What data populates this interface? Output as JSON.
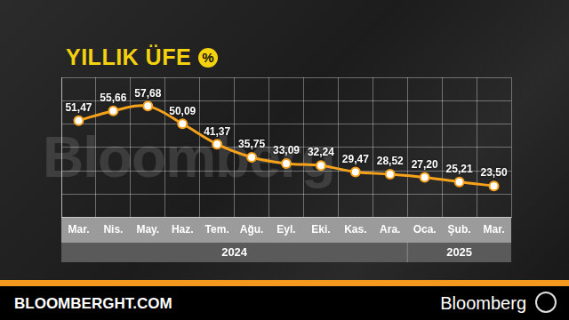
{
  "chart_data": {
    "type": "line",
    "title": "YILLIK ÜFE",
    "title_badge": "%",
    "watermark": "Bloomberg",
    "source": "BLOOMBERGHT.COM",
    "brand": "Bloomberg",
    "categories": [
      "Mar.",
      "Nis.",
      "May.",
      "Haz.",
      "Tem.",
      "Ağu.",
      "Eyl.",
      "Eki.",
      "Kas.",
      "Ara.",
      "Oca.",
      "Şub.",
      "Mar."
    ],
    "year_labels": [
      {
        "label": "2024",
        "start": 0,
        "end": 9
      },
      {
        "label": "2025",
        "start": 10,
        "end": 12
      }
    ],
    "values": [
      51.47,
      55.66,
      57.68,
      50.09,
      41.37,
      35.75,
      33.09,
      32.24,
      29.47,
      28.52,
      27.2,
      25.21,
      23.5
    ],
    "value_labels": [
      "51,47",
      "55,66",
      "57,68",
      "50,09",
      "41,37",
      "35,75",
      "33,09",
      "32,24",
      "29,47",
      "28,52",
      "27,20",
      "25,21",
      "23,50"
    ],
    "color": "#f7a21b",
    "marker": "circle",
    "ylim": [
      10,
      70
    ],
    "yticks": [
      10,
      20,
      30,
      40,
      50,
      60,
      70
    ],
    "grid": true,
    "data_labels": true,
    "tick_labels": "x"
  }
}
